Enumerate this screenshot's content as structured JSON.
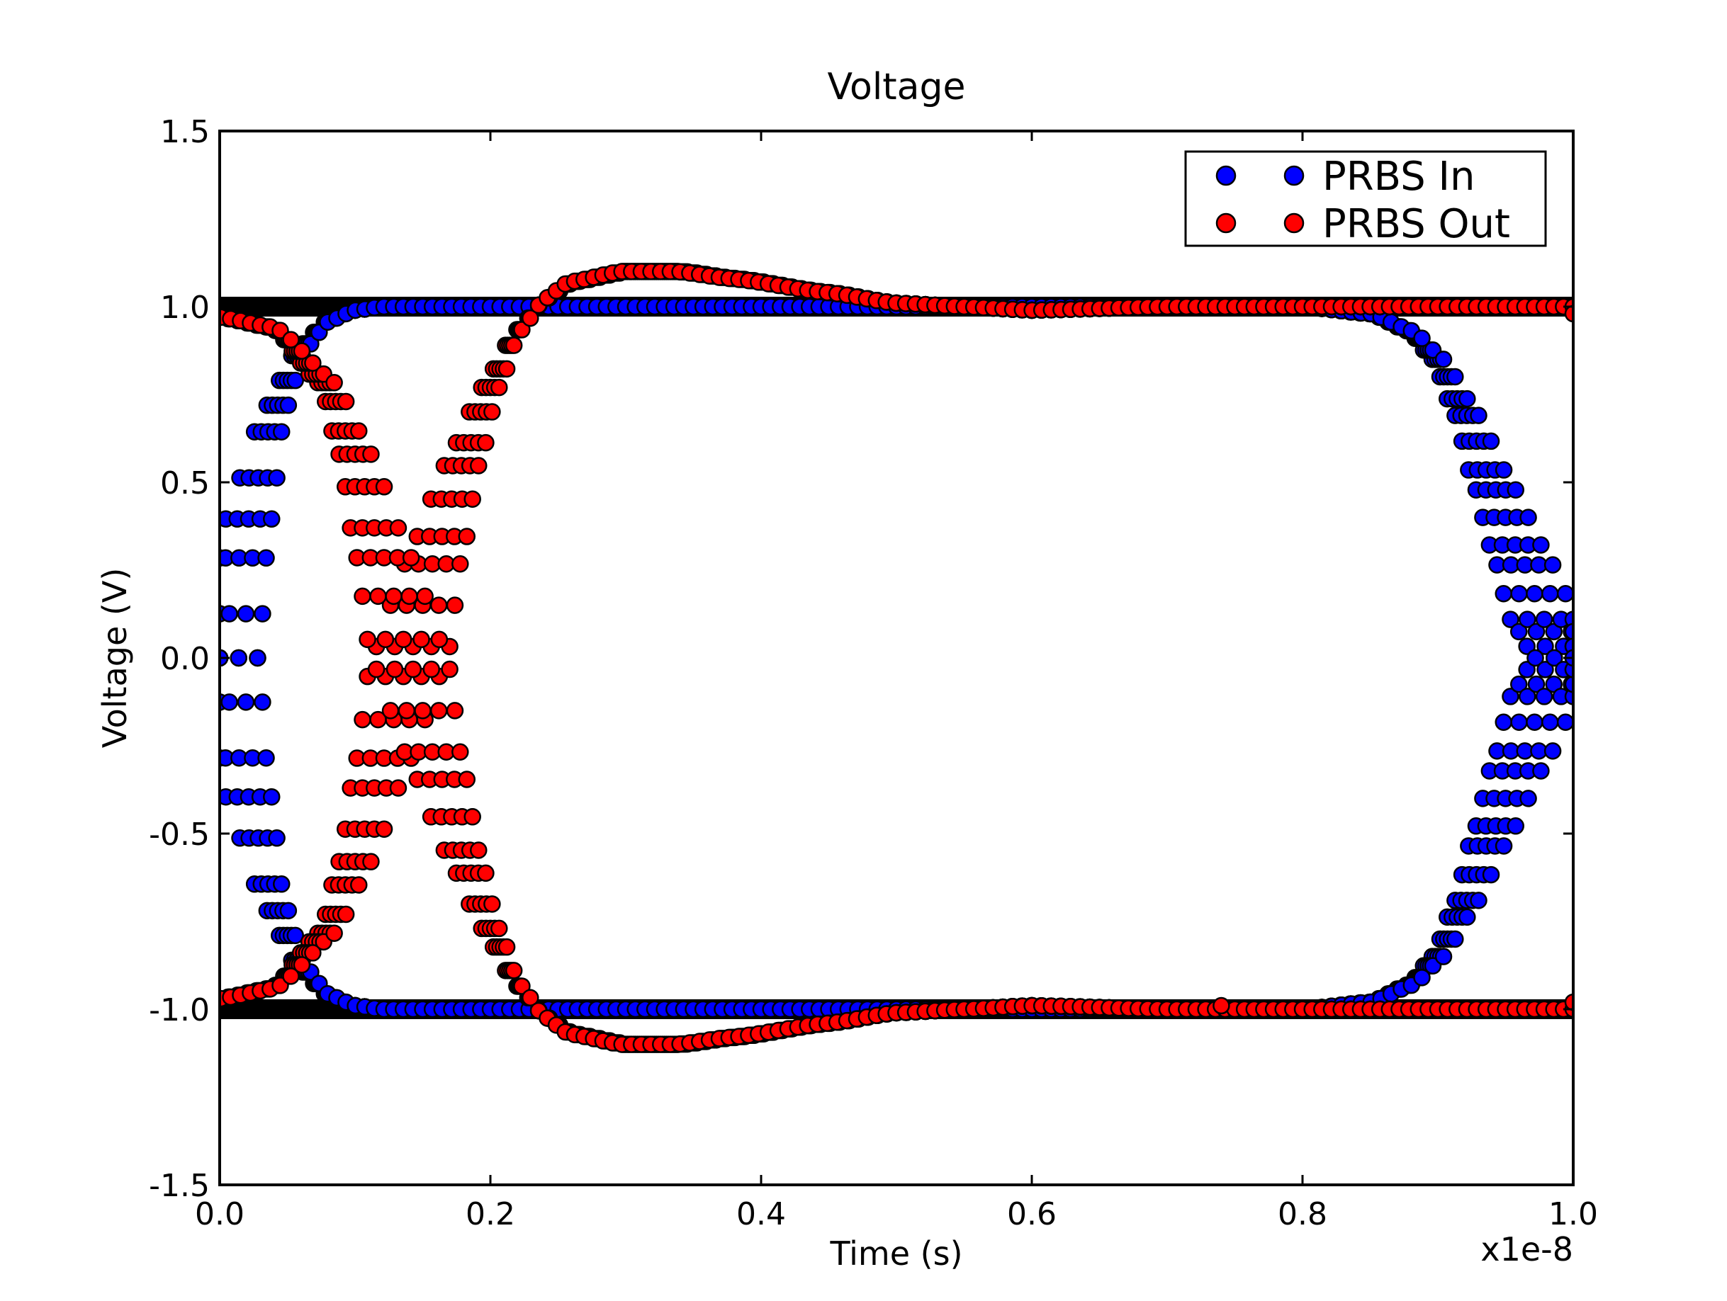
{
  "chart_data": {
    "type": "scatter",
    "title": "Voltage",
    "xlabel": "Time (s)",
    "ylabel": "Voltage (V)",
    "x_offset_label": "x1e-8",
    "xlim": [
      0.0,
      1.0
    ],
    "ylim": [
      -1.5,
      1.5
    ],
    "xticks": [
      0.0,
      0.2,
      0.4,
      0.6,
      0.8,
      1.0
    ],
    "xtick_labels": [
      "0.0",
      "0.2",
      "0.4",
      "0.6",
      "0.8",
      "1.0"
    ],
    "yticks": [
      1.5,
      1.0,
      0.5,
      0.0,
      -0.5,
      -1.0,
      -1.5
    ],
    "ytick_labels": [
      "1.5",
      "1.0",
      "0.5",
      "0.0",
      "-0.5",
      "-1.0",
      "-1.5"
    ],
    "grid": false,
    "legend_position": "top-right",
    "series": [
      {
        "name": "PRBS In",
        "color": "#0000ff",
        "marker": "circle",
        "traces": [
          {
            "x": [
              0.0,
              0.02,
              0.04,
              0.06,
              0.08,
              0.1,
              0.12,
              0.15,
              0.2,
              0.4,
              0.6,
              0.8,
              0.85,
              0.88,
              0.9,
              0.92,
              0.94,
              0.96,
              0.98,
              1.0
            ],
            "y": [
              0.0,
              0.38,
              0.7,
              0.88,
              0.96,
              0.99,
              1.0,
              1.0,
              1.0,
              1.0,
              1.0,
              1.0,
              0.98,
              0.93,
              0.85,
              0.7,
              0.5,
              0.3,
              0.1,
              0.0
            ]
          },
          {
            "x": [
              0.0,
              0.02,
              0.04,
              0.06,
              0.08,
              0.1,
              0.12,
              0.15,
              0.2,
              0.4,
              0.6,
              0.8,
              0.85,
              0.88,
              0.9,
              0.92,
              0.94,
              0.96,
              0.98,
              1.0
            ],
            "y": [
              0.0,
              -0.38,
              -0.7,
              -0.88,
              -0.96,
              -0.99,
              -1.0,
              -1.0,
              -1.0,
              -1.0,
              -1.0,
              -1.0,
              -0.98,
              -0.93,
              -0.85,
              -0.7,
              -0.5,
              -0.3,
              -0.1,
              0.0
            ]
          }
        ]
      },
      {
        "name": "PRBS Out",
        "color": "#ff0000",
        "marker": "circle",
        "traces": [
          {
            "x": [
              0.0,
              0.04,
              0.08,
              0.1,
              0.12,
              0.14,
              0.16,
              0.18,
              0.2,
              0.22,
              0.24,
              0.26,
              0.3,
              0.34,
              0.38,
              0.45,
              0.5,
              0.55,
              0.6,
              0.7,
              0.8,
              0.9,
              1.0
            ],
            "y": [
              -0.97,
              -0.94,
              -0.78,
              -0.58,
              -0.3,
              0.0,
              0.3,
              0.56,
              0.77,
              0.93,
              1.02,
              1.07,
              1.1,
              1.1,
              1.08,
              1.04,
              1.01,
              1.0,
              0.99,
              1.0,
              1.0,
              1.0,
              1.0
            ]
          },
          {
            "x": [
              0.0,
              0.04,
              0.08,
              0.1,
              0.12,
              0.14,
              0.16,
              0.18,
              0.2,
              0.22,
              0.24,
              0.26,
              0.3,
              0.34,
              0.38,
              0.45,
              0.5,
              0.55,
              0.6,
              0.7,
              0.8,
              0.9,
              1.0
            ],
            "y": [
              0.97,
              0.94,
              0.78,
              0.58,
              0.3,
              0.0,
              -0.3,
              -0.56,
              -0.77,
              -0.93,
              -1.02,
              -1.07,
              -1.1,
              -1.1,
              -1.08,
              -1.04,
              -1.01,
              -1.0,
              -0.99,
              -1.0,
              -1.0,
              -1.0,
              -1.0
            ]
          }
        ],
        "isolated_points": [
          {
            "x": 0.74,
            "y": -0.99
          },
          {
            "x": 1.0,
            "y": 0.98
          },
          {
            "x": 1.0,
            "y": -0.98
          }
        ]
      }
    ]
  }
}
